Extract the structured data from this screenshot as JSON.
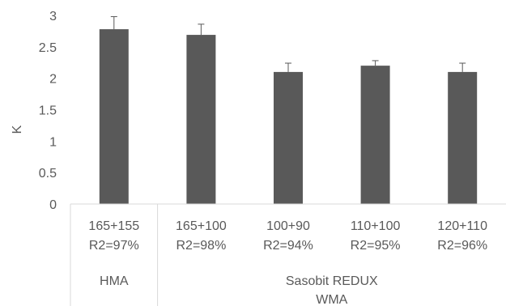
{
  "chart_data": {
    "type": "bar",
    "title": "",
    "ylabel": "K",
    "xlabel": "",
    "ylim": [
      0,
      3
    ],
    "yticks": [
      0,
      0.5,
      1,
      1.5,
      2,
      2.5,
      3
    ],
    "ytick_labels": [
      "0",
      "0.5",
      "1",
      "1.5",
      "2",
      "2.5",
      "3"
    ],
    "grid": false,
    "legend": "none",
    "bar_color": "#595959",
    "categories": [
      {
        "label": "165+155",
        "sublabel": "R2=97%"
      },
      {
        "label": "165+100",
        "sublabel": "R2=98%"
      },
      {
        "label": "100+90",
        "sublabel": "R2=94%"
      },
      {
        "label": "110+100",
        "sublabel": "R2=95%"
      },
      {
        "label": "120+110",
        "sublabel": "R2=96%"
      }
    ],
    "values": [
      2.78,
      2.69,
      2.1,
      2.2,
      2.1
    ],
    "errors": [
      0.2,
      0.17,
      0.14,
      0.08,
      0.14
    ],
    "groups": [
      {
        "lines": [
          "HMA"
        ],
        "start": 0,
        "end": 0
      },
      {
        "lines": [
          "Sasobit REDUX",
          "WMA"
        ],
        "start": 1,
        "end": 4
      }
    ]
  }
}
